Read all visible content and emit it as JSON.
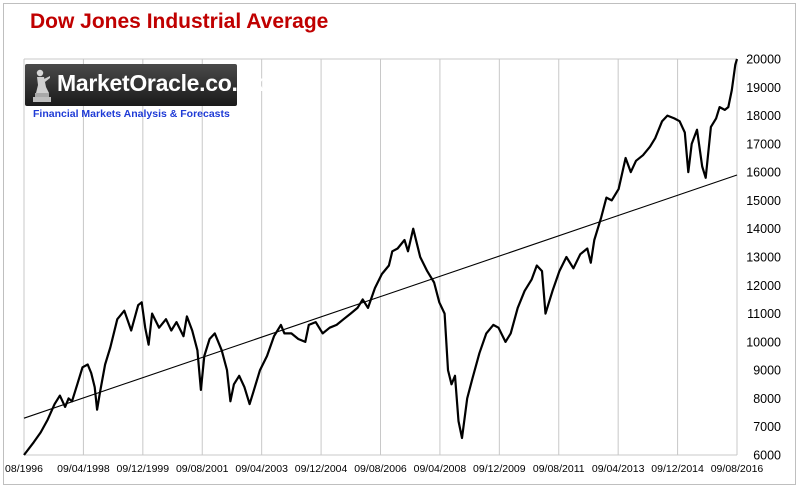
{
  "chart_data": {
    "type": "line",
    "title": "Dow Jones Industrial Average",
    "xlabel": "",
    "ylabel": "",
    "ylim": [
      6000,
      20000
    ],
    "yticks": [
      6000,
      7000,
      8000,
      9000,
      10000,
      11000,
      12000,
      13000,
      14000,
      15000,
      16000,
      17000,
      18000,
      19000,
      20000
    ],
    "xticks": [
      "08/1996",
      "09/04/1998",
      "09/12/1999",
      "09/08/2001",
      "09/04/2003",
      "09/12/2004",
      "09/08/2006",
      "09/04/2008",
      "09/12/2009",
      "09/08/2011",
      "09/04/2013",
      "09/12/2014",
      "09/08/2016"
    ],
    "grid": {
      "horizontal": false,
      "vertical": true
    },
    "legend": "none",
    "series": [
      {
        "color": "#000000",
        "x": [
          1996.62,
          1996.9,
          1997.1,
          1997.3,
          1997.5,
          1997.65,
          1997.8,
          1997.9,
          1998.0,
          1998.15,
          1998.3,
          1998.45,
          1998.55,
          1998.65,
          1998.72,
          1998.8,
          1998.95,
          1999.1,
          1999.3,
          1999.5,
          1999.7,
          1999.9,
          2000.0,
          2000.1,
          2000.2,
          2000.3,
          2000.5,
          2000.7,
          2000.85,
          2001.0,
          2001.2,
          2001.3,
          2001.45,
          2001.6,
          2001.7,
          2001.8,
          2001.95,
          2002.1,
          2002.3,
          2002.45,
          2002.55,
          2002.65,
          2002.8,
          2002.95,
          2003.1,
          2003.2,
          2003.4,
          2003.6,
          2003.8,
          2004.0,
          2004.1,
          2004.3,
          2004.5,
          2004.7,
          2004.8,
          2005.0,
          2005.2,
          2005.4,
          2005.6,
          2005.8,
          2006.0,
          2006.2,
          2006.35,
          2006.5,
          2006.7,
          2006.9,
          2007.1,
          2007.2,
          2007.35,
          2007.55,
          2007.65,
          2007.8,
          2008.0,
          2008.2,
          2008.4,
          2008.55,
          2008.7,
          2008.8,
          2008.9,
          2009.0,
          2009.1,
          2009.2,
          2009.35,
          2009.5,
          2009.7,
          2009.9,
          2010.1,
          2010.25,
          2010.45,
          2010.6,
          2010.8,
          2011.0,
          2011.2,
          2011.35,
          2011.5,
          2011.6,
          2011.8,
          2012.0,
          2012.2,
          2012.4,
          2012.6,
          2012.8,
          2012.9,
          2013.0,
          2013.2,
          2013.35,
          2013.5,
          2013.7,
          2013.9,
          2014.05,
          2014.2,
          2014.4,
          2014.6,
          2014.75,
          2014.95,
          2015.1,
          2015.3,
          2015.45,
          2015.6,
          2015.7,
          2015.8,
          2015.95,
          2016.1,
          2016.2,
          2016.35,
          2016.5,
          2016.6,
          2016.75,
          2016.85,
          2016.95,
          2017.05,
          2017.1
        ],
        "y": [
          6000,
          6450,
          6800,
          7250,
          7800,
          8100,
          7700,
          8000,
          7900,
          8500,
          9100,
          9200,
          8900,
          8400,
          7600,
          8200,
          9200,
          9800,
          10800,
          11100,
          10400,
          11300,
          11400,
          10500,
          9900,
          11000,
          10500,
          10800,
          10400,
          10700,
          10200,
          10900,
          10400,
          9700,
          8300,
          9500,
          10100,
          10300,
          9700,
          9000,
          7900,
          8500,
          8800,
          8400,
          7800,
          8200,
          9000,
          9500,
          10200,
          10600,
          10300,
          10300,
          10100,
          10000,
          10600,
          10700,
          10300,
          10500,
          10600,
          10800,
          11000,
          11200,
          11500,
          11200,
          11900,
          12400,
          12700,
          13200,
          13300,
          13600,
          13200,
          14000,
          13000,
          12500,
          12100,
          11400,
          11000,
          9000,
          8500,
          8800,
          7200,
          6600,
          8000,
          8700,
          9600,
          10300,
          10600,
          10500,
          10000,
          10300,
          11200,
          11800,
          12200,
          12700,
          12500,
          11000,
          11800,
          12500,
          13000,
          12600,
          13100,
          13300,
          12800,
          13600,
          14400,
          15100,
          15000,
          15400,
          16500,
          16000,
          16400,
          16600,
          16900,
          17200,
          17800,
          18000,
          17900,
          17800,
          17400,
          16000,
          17000,
          17500,
          16200,
          15800,
          17600,
          17900,
          18300,
          18200,
          18300,
          18900,
          19800,
          20000
        ]
      },
      {
        "type": "trendline",
        "color": "#000000",
        "x": [
          1996.62,
          2017.1
        ],
        "y": [
          7300,
          15900
        ]
      }
    ]
  },
  "logo": {
    "name": "MarketOracle.co.uk",
    "tagline": "Financial Markets Analysis & Forecasts"
  }
}
